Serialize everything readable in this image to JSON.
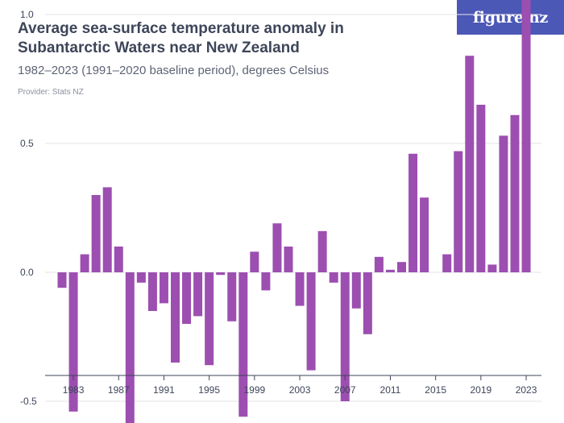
{
  "header": {
    "title": "Average sea-surface temperature anomaly in Subantarctic Waters near New Zealand",
    "subtitle": "1982–2023 (1991–2020 baseline period), degrees Celsius",
    "provider": "Provider: Stats NZ",
    "logo_text": "figure.nz"
  },
  "colors": {
    "bar": "#9c4fb0",
    "grid": "#e3e3e8",
    "axis": "#3d4559",
    "logo_bg": "#4c58b5"
  },
  "chart_data": {
    "type": "bar",
    "title": "Average sea-surface temperature anomaly in Subantarctic Waters near New Zealand",
    "subtitle": "1982–2023 (1991–2020 baseline period), degrees Celsius",
    "x": [
      1982,
      1983,
      1984,
      1985,
      1986,
      1987,
      1988,
      1989,
      1990,
      1991,
      1992,
      1993,
      1994,
      1995,
      1996,
      1997,
      1998,
      1999,
      2000,
      2001,
      2002,
      2003,
      2004,
      2005,
      2006,
      2007,
      2008,
      2009,
      2010,
      2011,
      2012,
      2013,
      2014,
      2015,
      2016,
      2017,
      2018,
      2019,
      2020,
      2021,
      2022,
      2023
    ],
    "values": [
      -0.06,
      -0.54,
      0.07,
      0.3,
      0.33,
      0.1,
      -0.61,
      -0.04,
      -0.15,
      -0.12,
      -0.35,
      -0.2,
      -0.17,
      -0.36,
      -0.01,
      -0.19,
      -0.56,
      0.08,
      -0.07,
      0.19,
      0.1,
      -0.13,
      -0.38,
      0.16,
      -0.04,
      -0.5,
      -0.14,
      -0.24,
      0.06,
      0.01,
      0.04,
      0.46,
      0.29,
      0.0,
      0.07,
      0.47,
      0.84,
      0.65,
      0.03,
      0.53,
      0.61,
      1.15
    ],
    "xticks": [
      1983,
      1987,
      1991,
      1995,
      1999,
      2003,
      2007,
      2011,
      2015,
      2019,
      2023
    ],
    "xtick_labels": [
      "1983",
      "1987",
      "1991",
      "1995",
      "1999",
      "2003",
      "2007",
      "2011",
      "2015",
      "2019",
      "2023"
    ],
    "yticks": [
      -0.5,
      0.0,
      0.5,
      1.0
    ],
    "ytick_labels": [
      "-0.5",
      "0.0",
      "0.5",
      "1.0"
    ],
    "ylim": [
      -0.8,
      1.3
    ],
    "xlabel": "",
    "ylabel": "",
    "grid": true
  }
}
